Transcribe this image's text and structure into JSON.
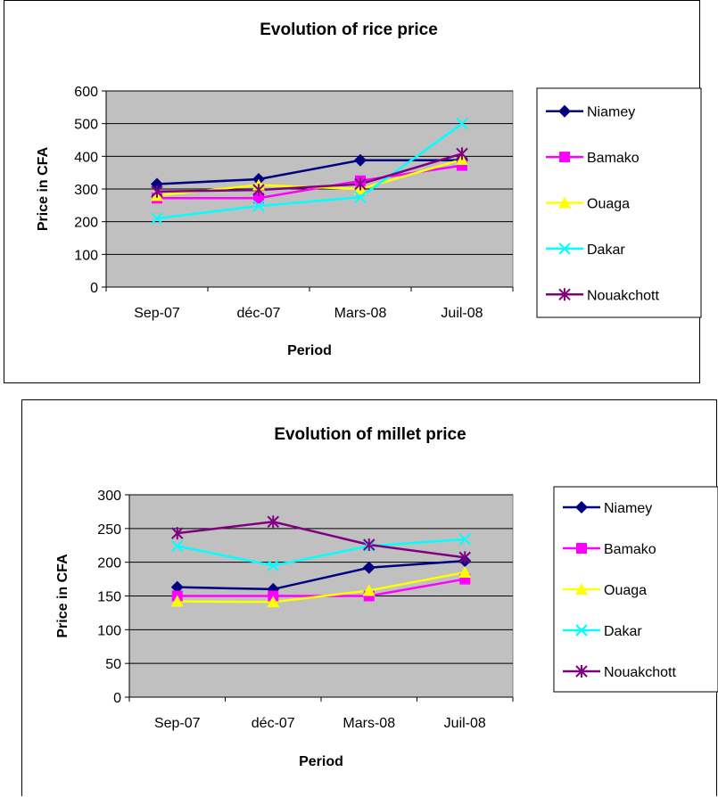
{
  "chart_data": [
    {
      "type": "line",
      "title": "Evolution of rice price",
      "xlabel": "Period",
      "ylabel": "Price in CFA",
      "categories": [
        "Sep-07",
        "déc-07",
        "Mars-08",
        "Juil-08"
      ],
      "ylim": [
        0,
        600
      ],
      "yticks": [
        0,
        100,
        200,
        300,
        400,
        500,
        600
      ],
      "grid": true,
      "legend": "right",
      "series": [
        {
          "name": "Niamey",
          "values": [
            315,
            330,
            388,
            388
          ],
          "color": "#000080",
          "marker": "diamond"
        },
        {
          "name": "Bamako",
          "values": [
            272,
            272,
            325,
            372
          ],
          "color": "#ff00ff",
          "marker": "square"
        },
        {
          "name": "Ouaga",
          "values": [
            280,
            312,
            300,
            390
          ],
          "color": "#ffff00",
          "marker": "triangle"
        },
        {
          "name": "Dakar",
          "values": [
            210,
            248,
            275,
            500
          ],
          "color": "#00ffff",
          "marker": "x"
        },
        {
          "name": "Nouakchott",
          "values": [
            292,
            297,
            315,
            408
          ],
          "color": "#800080",
          "marker": "star"
        }
      ]
    },
    {
      "type": "line",
      "title": "Evolution of millet price",
      "xlabel": "Period",
      "ylabel": "Price in CFA",
      "categories": [
        "Sep-07",
        "déc-07",
        "Mars-08",
        "Juil-08"
      ],
      "ylim": [
        0,
        300
      ],
      "yticks": [
        0,
        50,
        100,
        150,
        200,
        250,
        300
      ],
      "grid": true,
      "legend": "right",
      "series": [
        {
          "name": "Niamey",
          "values": [
            163,
            160,
            192,
            202
          ],
          "color": "#000080",
          "marker": "diamond"
        },
        {
          "name": "Bamako",
          "values": [
            150,
            150,
            150,
            175
          ],
          "color": "#ff00ff",
          "marker": "square"
        },
        {
          "name": "Ouaga",
          "values": [
            142,
            141,
            158,
            185
          ],
          "color": "#ffff00",
          "marker": "triangle"
        },
        {
          "name": "Dakar",
          "values": [
            224,
            195,
            224,
            234
          ],
          "color": "#00ffff",
          "marker": "x"
        },
        {
          "name": "Nouakchott",
          "values": [
            243,
            260,
            226,
            207
          ],
          "color": "#800080",
          "marker": "star"
        }
      ]
    }
  ]
}
